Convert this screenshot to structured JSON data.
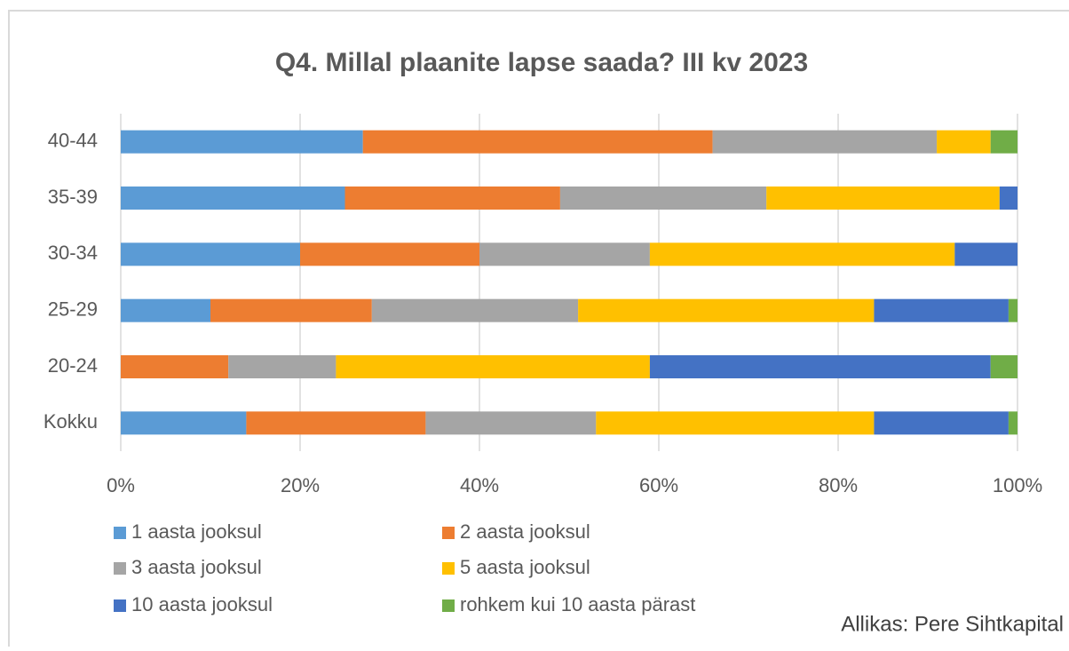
{
  "chart_data": {
    "type": "stacked-bar-horizontal",
    "title": "Q4. Millal plaanite lapse saada? III kv 2023",
    "categories": [
      "40-44",
      "35-39",
      "30-34",
      "25-29",
      "20-24",
      "Kokku"
    ],
    "series": [
      {
        "name": "1 aasta jooksul",
        "color": "#5b9bd5",
        "values": [
          27,
          25,
          20,
          10,
          0,
          14
        ]
      },
      {
        "name": "2 aasta jooksul",
        "color": "#ed7d31",
        "values": [
          39,
          24,
          20,
          18,
          12,
          20
        ]
      },
      {
        "name": "3 aasta jooksul",
        "color": "#a5a5a5",
        "values": [
          25,
          23,
          19,
          23,
          12,
          19
        ]
      },
      {
        "name": "5 aasta jooksul",
        "color": "#ffc000",
        "values": [
          6,
          26,
          34,
          33,
          35,
          31
        ]
      },
      {
        "name": "10 aasta jooksul",
        "color": "#4472c4",
        "values": [
          0,
          2,
          7,
          15,
          38,
          15
        ]
      },
      {
        "name": "rohkem kui 10 aasta pärast",
        "color": "#70ad47",
        "values": [
          3,
          0,
          0,
          1,
          3,
          1
        ]
      }
    ],
    "xlim": [
      0,
      100
    ],
    "xticks": [
      {
        "value": 0,
        "label": "0%"
      },
      {
        "value": 20,
        "label": "20%"
      },
      {
        "value": 40,
        "label": "40%"
      },
      {
        "value": 60,
        "label": "60%"
      },
      {
        "value": 80,
        "label": "80%"
      },
      {
        "value": 100,
        "label": "100%"
      }
    ],
    "grid": true,
    "legend": "bottom",
    "annotation": "Allikas: Pere Sihtkapital"
  }
}
